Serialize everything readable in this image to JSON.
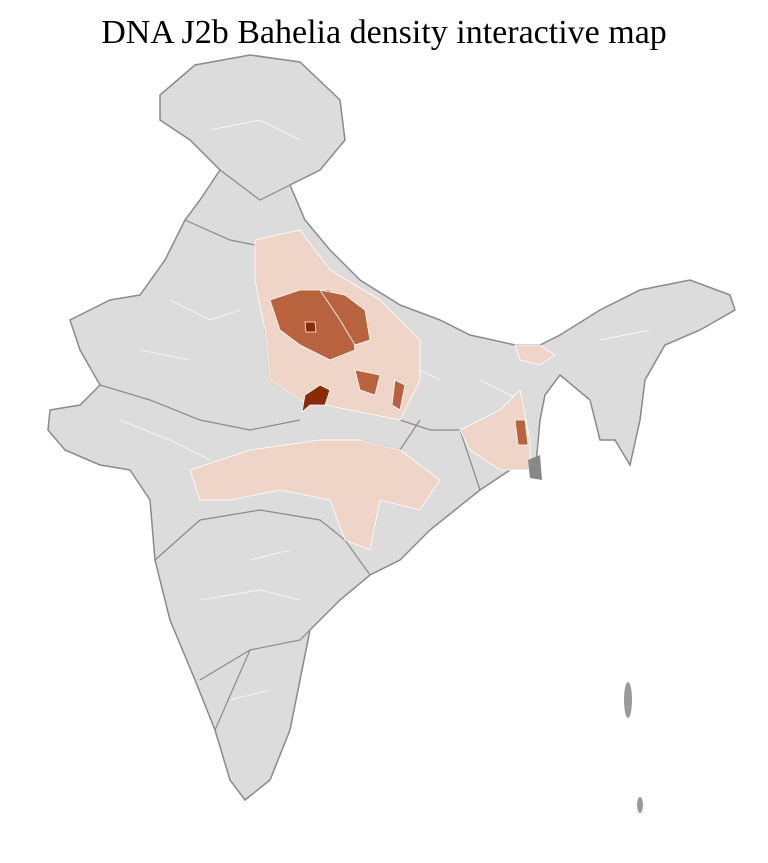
{
  "title": "DNA J2b Bahelia density interactive map",
  "colors": {
    "base": "#dcdcdc",
    "district_border": "#ffffff",
    "state_border": "#8a8a8a",
    "low": "#efd5c8",
    "medium": "#b9623e",
    "high": "#8a2b05"
  }
}
